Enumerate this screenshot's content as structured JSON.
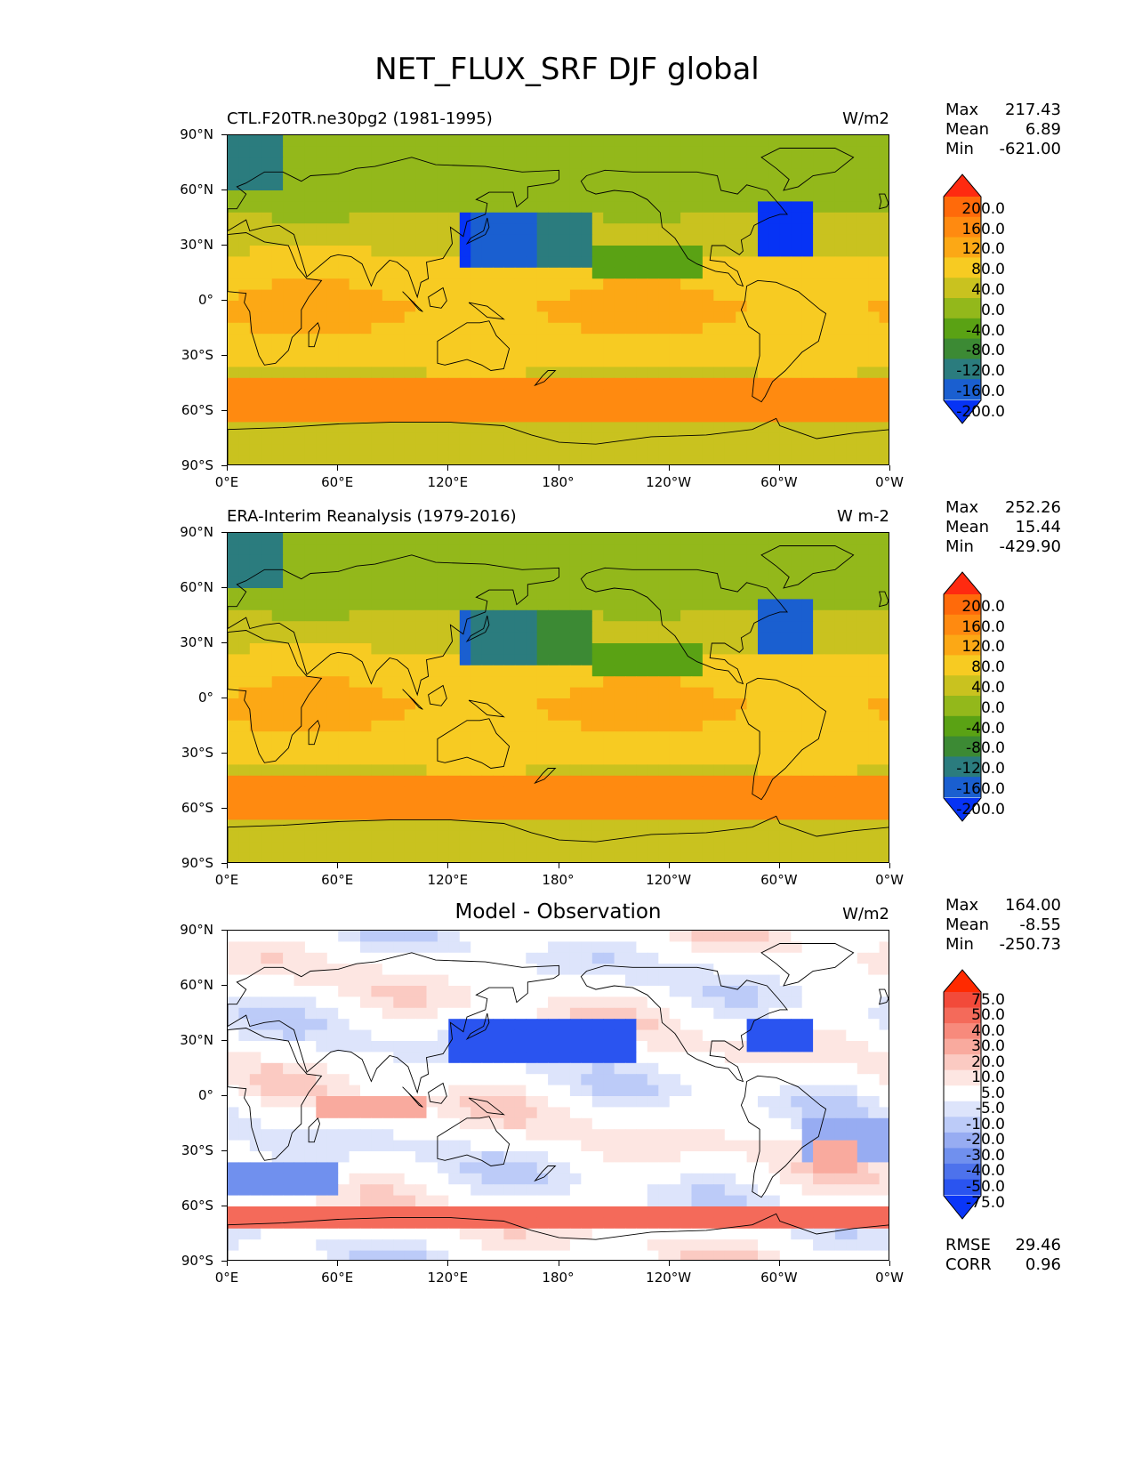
{
  "title": "NET_FLUX_SRF DJF global",
  "lat_ticks": [
    "90°N",
    "60°N",
    "30°N",
    "0°",
    "30°S",
    "60°S",
    "90°S"
  ],
  "lon_ticks": [
    "0°E",
    "60°E",
    "120°E",
    "180°",
    "120°W",
    "60°W",
    "0°W"
  ],
  "panels": [
    {
      "id": "model",
      "left_title": "CTL.F20TR.ne30pg2 (1981-1995)",
      "center_title": "",
      "right_title": "W/m2",
      "stats": [
        {
          "label": "Max",
          "value": "217.43"
        },
        {
          "label": "Mean",
          "value": "6.89"
        },
        {
          "label": "Min",
          "value": "-621.00"
        }
      ],
      "extra_stats": [],
      "colorbar": {
        "labels": [
          "200.0",
          "160.0",
          "120.0",
          "80.0",
          "40.0",
          "0.0",
          "-40.0",
          "-80.0",
          "-120.0",
          "-160.0",
          "-200.0"
        ],
        "colors": [
          "#ff2a10",
          "#ff6a0a",
          "#ff8a10",
          "#fca815",
          "#f7cb22",
          "#c9c21f",
          "#93b81b",
          "#5aa214",
          "#3c8a34",
          "#2b7c7e",
          "#1a5fd0",
          "#0633f5"
        ]
      }
    },
    {
      "id": "obs",
      "left_title": "ERA-Interim Reanalysis (1979-2016)",
      "center_title": "",
      "right_title": "W m-2",
      "stats": [
        {
          "label": "Max",
          "value": "252.26"
        },
        {
          "label": "Mean",
          "value": "15.44"
        },
        {
          "label": "Min",
          "value": "-429.90"
        }
      ],
      "extra_stats": [],
      "colorbar": {
        "labels": [
          "200.0",
          "160.0",
          "120.0",
          "80.0",
          "40.0",
          "0.0",
          "-40.0",
          "-80.0",
          "-120.0",
          "-160.0",
          "-200.0"
        ],
        "colors": [
          "#ff2a10",
          "#ff6a0a",
          "#ff8a10",
          "#fca815",
          "#f7cb22",
          "#c9c21f",
          "#93b81b",
          "#5aa214",
          "#3c8a34",
          "#2b7c7e",
          "#1a5fd0",
          "#0633f5"
        ]
      }
    },
    {
      "id": "diff",
      "left_title": "",
      "center_title": "Model - Observation",
      "right_title": "W/m2",
      "stats": [
        {
          "label": "Max",
          "value": "164.00"
        },
        {
          "label": "Mean",
          "value": "-8.55"
        },
        {
          "label": "Min",
          "value": "-250.73"
        }
      ],
      "extra_stats": [
        {
          "label": "RMSE",
          "value": "29.46"
        },
        {
          "label": "CORR",
          "value": "0.96"
        }
      ],
      "colorbar": {
        "labels": [
          "75.0",
          "50.0",
          "40.0",
          "30.0",
          "20.0",
          "10.0",
          "5.0",
          "-5.0",
          "-10.0",
          "-20.0",
          "-30.0",
          "-40.0",
          "-50.0",
          "-75.0"
        ],
        "colors": [
          "#ff2a00",
          "#f24a3a",
          "#f46a5a",
          "#f78a7c",
          "#f9aa9e",
          "#fbcac2",
          "#fde6e2",
          "#ffffff",
          "#dde4fb",
          "#bccbf8",
          "#97acf2",
          "#7090ee",
          "#4d72ec",
          "#2a54f0",
          "#0a36f8"
        ]
      }
    }
  ]
}
